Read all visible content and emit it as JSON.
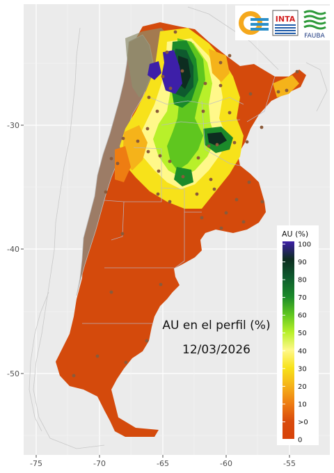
{
  "title_line1": "AU en el perfil (%)",
  "title_line2": "12/03/2026",
  "x_ticks": [
    "-75",
    "-70",
    "-65",
    "-60",
    "-55"
  ],
  "y_ticks": [
    "-30",
    "-40",
    "-50"
  ],
  "legend": {
    "title": "AU (%)",
    "labels": [
      "100",
      "90",
      "80",
      "70",
      "60",
      "50",
      "40",
      "30",
      "20",
      "10",
      ">0",
      "0"
    ],
    "colors": [
      "#3d1fa8",
      "#0d2d20",
      "#0e5a2e",
      "#1b8a2a",
      "#5fc61f",
      "#b8f02a",
      "#fff88a",
      "#f7e21a",
      "#f5b31a",
      "#ee7d12",
      "#d94b0c",
      "#d8420a"
    ]
  },
  "logos": {
    "inta": "INTA",
    "fauba": "FAUBA"
  },
  "colors": {
    "panel_bg": "#ebebeb",
    "grid": "#ffffff",
    "dry": "#d44a0c",
    "arid": "#9c7c66",
    "stations": "#8a5a3a"
  }
}
